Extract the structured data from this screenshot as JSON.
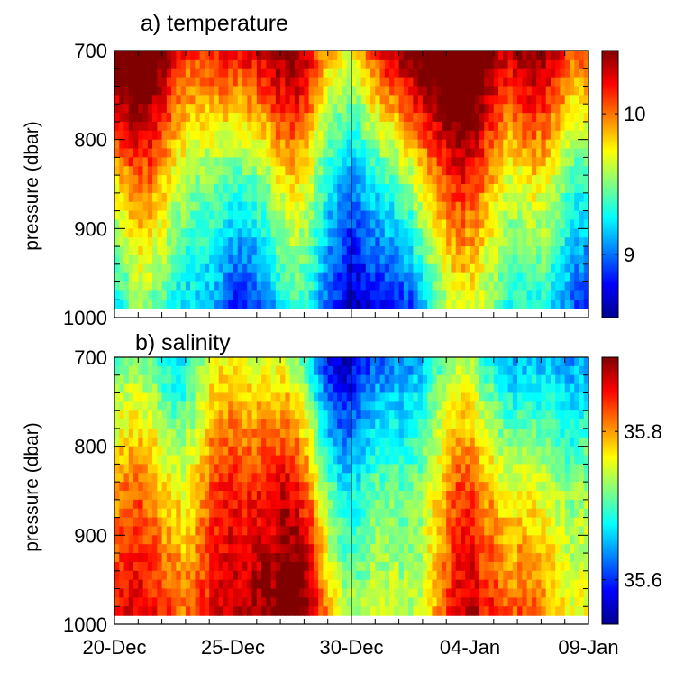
{
  "chart_data": [
    {
      "type": "heatmap",
      "title": "a) temperature",
      "xlabel": "",
      "ylabel": "pressure (dbar)",
      "x_tick_labels": [],
      "x_range": [
        "2003-12-20",
        "2004-01-09"
      ],
      "y_ticks": [
        700,
        800,
        900,
        1000
      ],
      "ylim": [
        700,
        1000
      ],
      "y_reversed": true,
      "data_bottom": 990,
      "colorbar": {
        "ticks": [
          9,
          10
        ],
        "range": [
          8.55,
          10.45
        ],
        "colormap": "jet"
      },
      "vlines": [
        "2003-12-25",
        "2003-12-30",
        "2004-01-04"
      ],
      "field": {
        "base": [
          10.2,
          9.45,
          8.95
        ],
        "tilt_rate": 28,
        "warm_events": [
          {
            "center": "2003-12-21",
            "width_days": 2.2,
            "amplitude": 0.45
          },
          {
            "center": "2003-12-27",
            "width_days": 2.0,
            "amplitude": 0.3
          },
          {
            "center": "2004-01-02",
            "width_days": 1.6,
            "amplitude": 0.55
          },
          {
            "center": "2004-01-04",
            "width_days": 1.2,
            "amplitude": 0.45
          },
          {
            "center": "2004-01-07",
            "width_days": 2.0,
            "amplitude": 0.25
          }
        ],
        "cold_events": [
          {
            "center": "2003-12-30",
            "width_days": 2.2,
            "amplitude": 0.4
          },
          {
            "center": "2003-12-24",
            "width_days": 1.4,
            "amplitude": 0.25
          },
          {
            "center": "2004-01-08",
            "width_days": 1.5,
            "amplitude": 0.2
          }
        ]
      }
    },
    {
      "type": "heatmap",
      "title": "b) salinity",
      "xlabel": "",
      "ylabel": "pressure (dbar)",
      "x_tick_labels": [
        "20-Dec",
        "25-Dec",
        "30-Dec",
        "04-Jan",
        "09-Jan"
      ],
      "x_ticks": [
        "2003-12-20",
        "2003-12-25",
        "2003-12-30",
        "2004-01-04",
        "2004-01-09"
      ],
      "x_range": [
        "2003-12-20",
        "2004-01-09"
      ],
      "y_ticks": [
        700,
        800,
        900,
        1000
      ],
      "ylim": [
        700,
        1000
      ],
      "y_reversed": true,
      "data_bottom": 990,
      "colorbar": {
        "ticks": [
          35.6,
          35.8
        ],
        "range": [
          35.54,
          35.9
        ],
        "colormap": "jet"
      },
      "vlines": [
        "2003-12-25",
        "2003-12-30",
        "2004-01-04"
      ],
      "field": {
        "base": [
          35.7,
          35.8,
          35.85
        ],
        "tilt_rate": 30,
        "warm_events": [
          {
            "center": "2003-12-25",
            "width_days": 2.4,
            "amplitude": 0.05
          },
          {
            "center": "2003-12-27",
            "width_days": 2.0,
            "amplitude": 0.04
          },
          {
            "center": "2004-01-03",
            "width_days": 2.0,
            "amplitude": 0.04
          }
        ],
        "cold_events": [
          {
            "center": "2003-12-31",
            "width_days": 2.6,
            "amplitude": 0.1
          },
          {
            "center": "2003-12-29",
            "width_days": 1.5,
            "amplitude": 0.06
          },
          {
            "center": "2004-01-07",
            "width_days": 2.0,
            "amplitude": 0.07
          },
          {
            "center": "2003-12-23",
            "width_days": 1.2,
            "amplitude": 0.04
          }
        ]
      }
    }
  ]
}
